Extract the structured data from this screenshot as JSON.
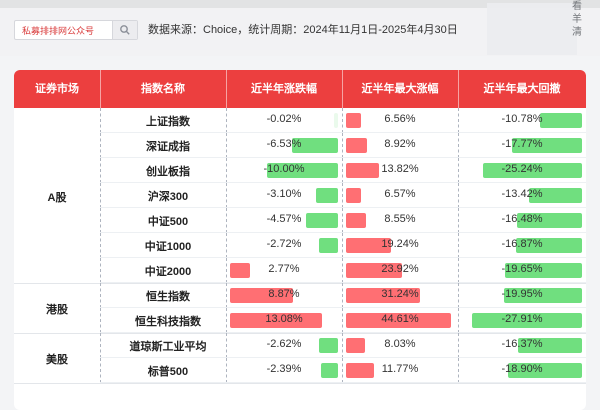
{
  "topbar": {
    "search_label": "私募排排网公众号",
    "meta": "数据来源：Choice，统计周期：2024年11月1日-2025年4月30日",
    "side_label": "看\n羊\n清"
  },
  "table": {
    "headers": [
      "证券市场",
      "指数名称",
      "近半年涨跌幅",
      "近半年最大涨幅",
      "近半年最大回撤"
    ],
    "groups": [
      {
        "market": "A股",
        "rows": [
          {
            "name": "上证指数",
            "change": -0.02,
            "change_label": "-0.02%",
            "max_up": 6.56,
            "max_up_label": "6.56%",
            "drawdown": -10.78,
            "drawdown_label": "-10.78%"
          },
          {
            "name": "深证成指",
            "change": -6.53,
            "change_label": "-6.53%",
            "max_up": 8.92,
            "max_up_label": "8.92%",
            "drawdown": -17.77,
            "drawdown_label": "-17.77%"
          },
          {
            "name": "创业板指",
            "change": -10.0,
            "change_label": "-10.00%",
            "max_up": 13.82,
            "max_up_label": "13.82%",
            "drawdown": -25.24,
            "drawdown_label": "-25.24%"
          },
          {
            "name": "沪深300",
            "change": -3.1,
            "change_label": "-3.10%",
            "max_up": 6.57,
            "max_up_label": "6.57%",
            "drawdown": -13.42,
            "drawdown_label": "-13.42%"
          },
          {
            "name": "中证500",
            "change": -4.57,
            "change_label": "-4.57%",
            "max_up": 8.55,
            "max_up_label": "8.55%",
            "drawdown": -16.48,
            "drawdown_label": "-16.48%"
          },
          {
            "name": "中证1000",
            "change": -2.72,
            "change_label": "-2.72%",
            "max_up": 19.24,
            "max_up_label": "19.24%",
            "drawdown": -16.87,
            "drawdown_label": "-16.87%"
          },
          {
            "name": "中证2000",
            "change": 2.77,
            "change_label": "2.77%",
            "max_up": 23.92,
            "max_up_label": "23.92%",
            "drawdown": -19.65,
            "drawdown_label": "-19.65%"
          }
        ]
      },
      {
        "market": "港股",
        "rows": [
          {
            "name": "恒生指数",
            "change": 8.87,
            "change_label": "8.87%",
            "max_up": 31.24,
            "max_up_label": "31.24%",
            "drawdown": -19.95,
            "drawdown_label": "-19.95%"
          },
          {
            "name": "恒生科技指数",
            "change": 13.08,
            "change_label": "13.08%",
            "max_up": 44.61,
            "max_up_label": "44.61%",
            "drawdown": -27.91,
            "drawdown_label": "-27.91%"
          }
        ]
      },
      {
        "market": "美股",
        "rows": [
          {
            "name": "道琼斯工业平均",
            "change": -2.62,
            "change_label": "-2.62%",
            "max_up": 8.03,
            "max_up_label": "8.03%",
            "drawdown": -16.37,
            "drawdown_label": "-16.37%"
          },
          {
            "name": "标普500",
            "change": -2.39,
            "change_label": "-2.39%",
            "max_up": 11.77,
            "max_up_label": "11.77%",
            "drawdown": -18.9,
            "drawdown_label": "-18.90%"
          }
        ]
      }
    ]
  },
  "colors": {
    "header_red": "#ec3f3f",
    "bar_red": "#ff6f73",
    "bar_green": "#70df7f"
  }
}
